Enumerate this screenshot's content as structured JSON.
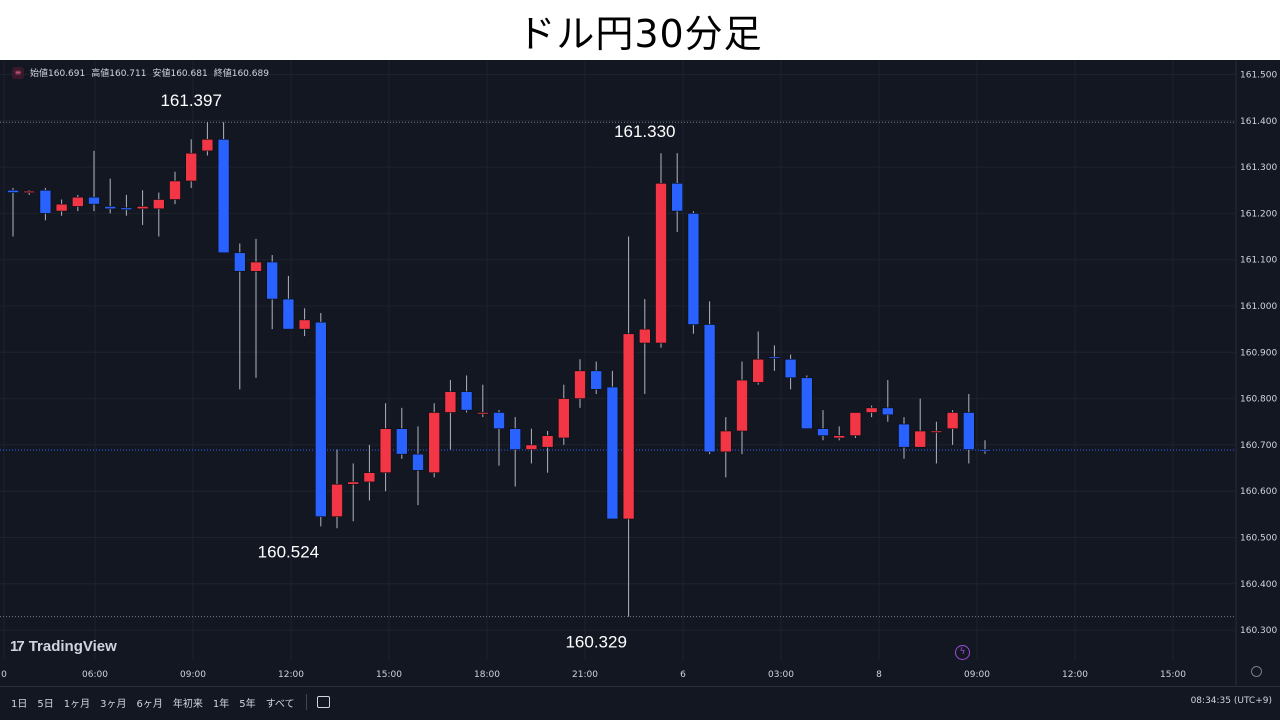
{
  "title": "ドル円30分足",
  "ohlc_header": {
    "open_label": "始値",
    "open": "160.691",
    "high_label": "高値",
    "high": "160.711",
    "low_label": "安値",
    "low": "160.681",
    "close_label": "終値",
    "close": "160.689"
  },
  "brand": "TradingView",
  "range_buttons": [
    "1日",
    "5日",
    "1ヶ月",
    "3ヶ月",
    "6ヶ月",
    "年初来",
    "1年",
    "5年",
    "すべて"
  ],
  "clock": "08:34:35 (UTC+9)",
  "colors": {
    "up": "#f23645",
    "down": "#2962ff",
    "background": "#131722",
    "axis_text": "#d1d4dc"
  },
  "chart_data": {
    "type": "candlestick",
    "y_ticks": [
      "161.500",
      "161.400",
      "161.300",
      "161.200",
      "161.100",
      "161.000",
      "160.900",
      "160.800",
      "160.700",
      "160.600",
      "160.500",
      "160.400",
      "160.300"
    ],
    "x_ticks": [
      "0",
      "06:00",
      "09:00",
      "12:00",
      "15:00",
      "18:00",
      "21:00",
      "6",
      "03:00",
      "8",
      "09:00",
      "12:00",
      "15:00"
    ],
    "ylim": [
      160.28,
      161.52
    ],
    "annotations": [
      {
        "text": "161.397",
        "value": 161.397,
        "bar": 11
      },
      {
        "text": "161.330",
        "value": 161.33,
        "bar": 39
      },
      {
        "text": "160.524",
        "value": 160.524,
        "bar": 17
      },
      {
        "text": "160.329",
        "value": 160.329,
        "bar": 36
      }
    ],
    "high_line": 161.397,
    "low_line": 160.329,
    "current_price": 160.689,
    "candles": [
      [
        161.25,
        161.255,
        161.15,
        161.245
      ],
      [
        161.245,
        161.25,
        161.24,
        161.248
      ],
      [
        161.25,
        161.255,
        161.185,
        161.2
      ],
      [
        161.205,
        161.23,
        161.195,
        161.22
      ],
      [
        161.215,
        161.24,
        161.205,
        161.235
      ],
      [
        161.235,
        161.335,
        161.205,
        161.22
      ],
      [
        161.215,
        161.275,
        161.2,
        161.21
      ],
      [
        161.212,
        161.24,
        161.195,
        161.208
      ],
      [
        161.21,
        161.25,
        161.175,
        161.215
      ],
      [
        161.21,
        161.245,
        161.15,
        161.23
      ],
      [
        161.23,
        161.29,
        161.22,
        161.27
      ],
      [
        161.27,
        161.36,
        161.255,
        161.33
      ],
      [
        161.335,
        161.397,
        161.325,
        161.36
      ],
      [
        161.36,
        161.397,
        161.12,
        161.115
      ],
      [
        161.115,
        161.135,
        160.82,
        161.075
      ],
      [
        161.075,
        161.145,
        160.845,
        161.095
      ],
      [
        161.095,
        161.11,
        160.95,
        161.015
      ],
      [
        161.015,
        161.065,
        160.95,
        160.95
      ],
      [
        160.95,
        160.995,
        160.935,
        160.97
      ],
      [
        160.965,
        160.985,
        160.524,
        160.545
      ],
      [
        160.545,
        160.69,
        160.52,
        160.615
      ],
      [
        160.615,
        160.66,
        160.535,
        160.62
      ],
      [
        160.62,
        160.7,
        160.58,
        160.64
      ],
      [
        160.64,
        160.79,
        160.6,
        160.735
      ],
      [
        160.735,
        160.78,
        160.67,
        160.68
      ],
      [
        160.68,
        160.74,
        160.57,
        160.645
      ],
      [
        160.64,
        160.79,
        160.63,
        160.77
      ],
      [
        160.77,
        160.84,
        160.69,
        160.815
      ],
      [
        160.815,
        160.85,
        160.77,
        160.775
      ],
      [
        160.77,
        160.83,
        160.76,
        160.77
      ],
      [
        160.77,
        160.775,
        160.655,
        160.735
      ],
      [
        160.735,
        160.76,
        160.61,
        160.69
      ],
      [
        160.69,
        160.735,
        160.66,
        160.7
      ],
      [
        160.695,
        160.73,
        160.64,
        160.72
      ],
      [
        160.715,
        160.83,
        160.7,
        160.8
      ],
      [
        160.8,
        160.885,
        160.78,
        160.86
      ],
      [
        160.86,
        160.88,
        160.81,
        160.82
      ],
      [
        160.825,
        160.86,
        160.54,
        160.54
      ],
      [
        160.54,
        161.15,
        160.329,
        160.94
      ],
      [
        160.92,
        161.015,
        160.81,
        160.95
      ],
      [
        160.92,
        161.33,
        160.91,
        161.265
      ],
      [
        161.265,
        161.33,
        161.16,
        161.205
      ],
      [
        161.2,
        161.205,
        160.94,
        160.96
      ],
      [
        160.96,
        161.01,
        160.68,
        160.685
      ],
      [
        160.685,
        160.76,
        160.63,
        160.73
      ],
      [
        160.73,
        160.88,
        160.68,
        160.84
      ],
      [
        160.835,
        160.945,
        160.83,
        160.885
      ],
      [
        160.89,
        160.915,
        160.86,
        160.888
      ],
      [
        160.885,
        160.895,
        160.82,
        160.845
      ],
      [
        160.845,
        160.85,
        160.735,
        160.735
      ],
      [
        160.735,
        160.775,
        160.71,
        160.72
      ],
      [
        160.715,
        160.74,
        160.71,
        160.72
      ],
      [
        160.72,
        160.77,
        160.715,
        160.77
      ],
      [
        160.77,
        160.785,
        160.76,
        160.78
      ],
      [
        160.78,
        160.84,
        160.75,
        160.765
      ],
      [
        160.745,
        160.76,
        160.67,
        160.695
      ],
      [
        160.695,
        160.8,
        160.695,
        160.73
      ],
      [
        160.728,
        160.75,
        160.66,
        160.73
      ],
      [
        160.735,
        160.775,
        160.7,
        160.77
      ],
      [
        160.77,
        160.81,
        160.66,
        160.69
      ],
      [
        160.69,
        160.71,
        160.681,
        160.689
      ]
    ]
  }
}
